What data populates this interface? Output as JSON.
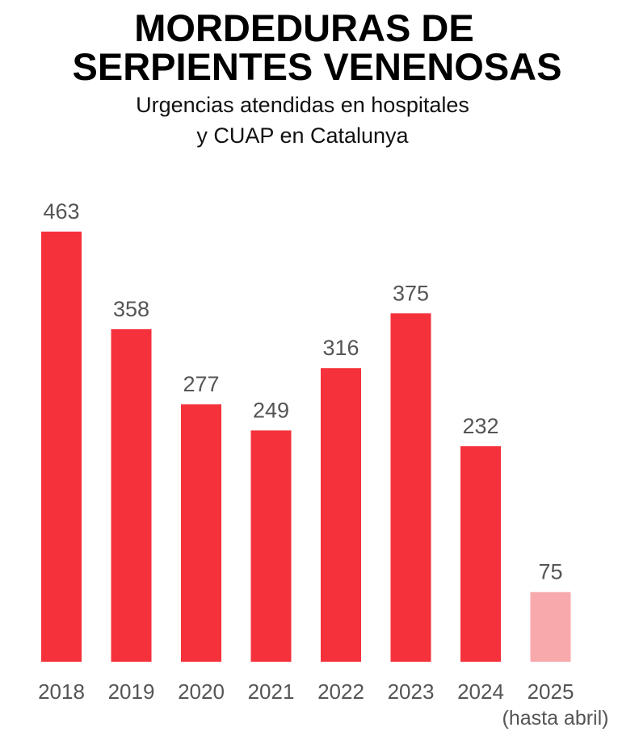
{
  "chart_data": {
    "type": "bar",
    "title": "MORDEDURAS DE SERPIENTES VENENOSAS",
    "title_lines": [
      "MORDEDURAS DE",
      "SERPIENTES VENENOSAS"
    ],
    "subtitle_lines": [
      "Urgencias atendidas en hospitales",
      "y CUAP en Catalunya"
    ],
    "categories": [
      "2018",
      "2019",
      "2020",
      "2021",
      "2022",
      "2023",
      "2024",
      "2025"
    ],
    "category_notes": [
      "",
      "",
      "",
      "",
      "",
      "",
      "",
      "(hasta abril)"
    ],
    "values": [
      463,
      358,
      277,
      249,
      316,
      375,
      232,
      75
    ],
    "data_labels": [
      "463",
      "358",
      "277",
      "249",
      "316",
      "375",
      "232",
      "75"
    ],
    "highlight": [
      false,
      false,
      false,
      false,
      false,
      false,
      false,
      true
    ],
    "xlabel": "",
    "ylabel": "",
    "ylim": [
      0,
      463
    ],
    "grid": false,
    "legend": "none",
    "colors": {
      "bar": "#f5313b",
      "bar_partial": "#f8a9ac",
      "label": "#555555",
      "title": "#000000"
    }
  }
}
